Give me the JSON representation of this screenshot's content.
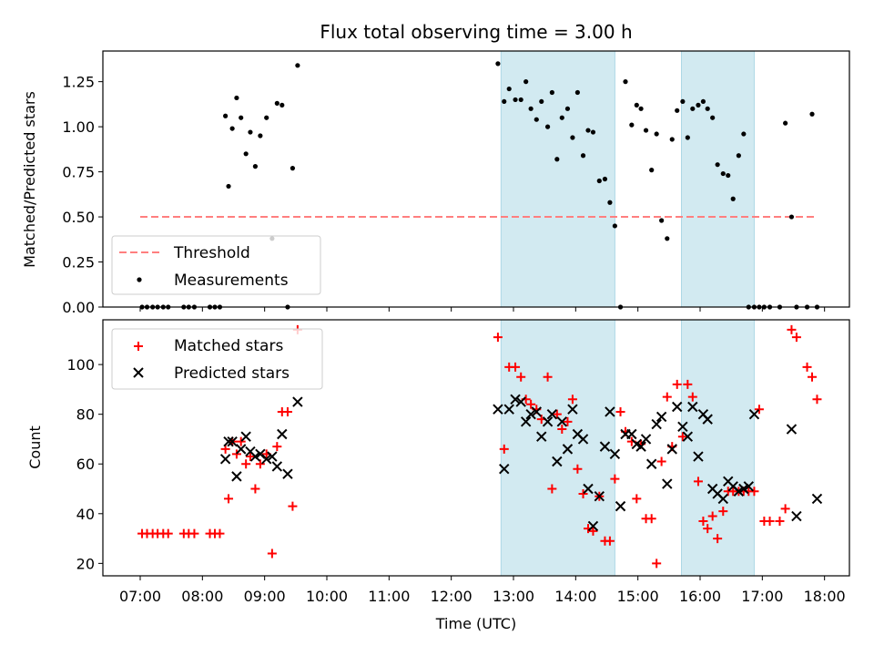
{
  "chart_data": [
    {
      "type": "scatter",
      "title": "Flux total observing time = 3.00 h",
      "ylabel": "Matched/Predicted stars",
      "xlabel": "",
      "xlim": [
        6.4,
        18.4
      ],
      "ylim": [
        0,
        1.42
      ],
      "yticks": [
        0.0,
        0.25,
        0.5,
        0.75,
        1.0,
        1.25
      ],
      "ytick_labels": [
        "0.00",
        "0.25",
        "0.50",
        "0.75",
        "1.00",
        "1.25"
      ],
      "shaded_spans": [
        [
          12.8,
          14.63
        ],
        [
          15.7,
          16.87
        ]
      ],
      "shade_color": "#add8e6",
      "threshold": {
        "name": "Threshold",
        "value": 0.5,
        "x_range": [
          7.0,
          17.87
        ],
        "color": "#ff7f7f"
      },
      "series": [
        {
          "name": "Measurements",
          "marker": "dot",
          "color": "#000000",
          "x": [
            7.03,
            7.11,
            7.2,
            7.28,
            7.37,
            7.45,
            7.7,
            7.78,
            7.87,
            8.12,
            8.2,
            8.28,
            8.37,
            8.42,
            8.48,
            8.55,
            8.62,
            8.7,
            8.77,
            8.85,
            8.93,
            9.03,
            9.12,
            9.2,
            9.28,
            9.37,
            9.45,
            9.53,
            12.75,
            12.85,
            12.93,
            13.03,
            13.12,
            13.2,
            13.28,
            13.37,
            13.45,
            13.55,
            13.62,
            13.7,
            13.78,
            13.87,
            13.95,
            14.03,
            14.12,
            14.2,
            14.28,
            14.38,
            14.47,
            14.55,
            14.63,
            14.72,
            14.8,
            14.9,
            14.98,
            15.05,
            15.13,
            15.22,
            15.3,
            15.38,
            15.47,
            15.55,
            15.63,
            15.72,
            15.8,
            15.88,
            15.97,
            16.05,
            16.12,
            16.2,
            16.28,
            16.37,
            16.45,
            16.53,
            16.62,
            16.7,
            16.78,
            16.87,
            16.95,
            17.03,
            17.12,
            17.28,
            17.37,
            17.47,
            17.55,
            17.72,
            17.8,
            17.88
          ],
          "y": [
            0,
            0,
            0,
            0,
            0,
            0,
            0,
            0,
            0,
            0,
            0,
            0,
            1.06,
            0.67,
            0.99,
            1.16,
            1.05,
            0.85,
            0.97,
            0.78,
            0.95,
            1.05,
            0.38,
            1.13,
            1.12,
            0,
            0.77,
            1.34,
            1.35,
            1.14,
            1.21,
            1.15,
            1.15,
            1.25,
            1.1,
            1.04,
            1.14,
            1.0,
            1.19,
            0.82,
            1.05,
            1.1,
            0.94,
            1.19,
            0.84,
            0.98,
            0.97,
            0.7,
            0.71,
            0.58,
            0.45,
            0.0,
            1.25,
            1.01,
            1.12,
            1.1,
            0.98,
            0.76,
            0.96,
            0.48,
            0.38,
            0.93,
            1.09,
            1.14,
            0.94,
            1.1,
            1.12,
            1.14,
            1.1,
            1.05,
            0.79,
            0.74,
            0.73,
            0.6,
            0.84,
            0.96,
            0,
            0,
            0,
            0,
            0,
            0,
            1.02,
            0.5,
            0,
            0,
            1.07,
            0
          ]
        }
      ],
      "legend": {
        "position": "lower-left"
      }
    },
    {
      "type": "scatter",
      "title": "",
      "xlabel": "Time (UTC)",
      "ylabel": "Count",
      "xlim": [
        6.4,
        18.4
      ],
      "ylim": [
        15,
        118
      ],
      "xticks": [
        7,
        8,
        9,
        10,
        11,
        12,
        13,
        14,
        15,
        16,
        17,
        18
      ],
      "xtick_labels": [
        "07:00",
        "08:00",
        "09:00",
        "10:00",
        "11:00",
        "12:00",
        "13:00",
        "14:00",
        "15:00",
        "16:00",
        "17:00",
        "18:00"
      ],
      "yticks": [
        20,
        40,
        60,
        80,
        100
      ],
      "ytick_labels": [
        "20",
        "40",
        "60",
        "80",
        "100"
      ],
      "shaded_spans": [
        [
          12.8,
          14.63
        ],
        [
          15.7,
          16.87
        ]
      ],
      "shade_color": "#add8e6",
      "series": [
        {
          "name": "Matched stars",
          "marker": "plus",
          "color": "#ff0000",
          "x": [
            7.03,
            7.11,
            7.2,
            7.28,
            7.37,
            7.45,
            7.7,
            7.78,
            7.87,
            8.12,
            8.2,
            8.28,
            8.37,
            8.42,
            8.48,
            8.55,
            8.62,
            8.7,
            8.77,
            8.85,
            8.93,
            9.03,
            9.12,
            9.2,
            9.28,
            9.37,
            9.45,
            9.53,
            12.75,
            12.85,
            12.93,
            13.03,
            13.12,
            13.2,
            13.28,
            13.37,
            13.45,
            13.55,
            13.62,
            13.7,
            13.78,
            13.87,
            13.95,
            14.03,
            14.12,
            14.2,
            14.28,
            14.38,
            14.47,
            14.55,
            14.63,
            14.72,
            14.8,
            14.9,
            14.98,
            15.05,
            15.13,
            15.22,
            15.3,
            15.38,
            15.47,
            15.55,
            15.63,
            15.72,
            15.8,
            15.88,
            15.97,
            16.05,
            16.12,
            16.2,
            16.28,
            16.37,
            16.45,
            16.53,
            16.62,
            16.7,
            16.78,
            16.87,
            16.95,
            17.03,
            17.12,
            17.28,
            17.37,
            17.47,
            17.55,
            17.72,
            17.8,
            17.88
          ],
          "y": [
            32,
            32,
            32,
            32,
            32,
            32,
            32,
            32,
            32,
            32,
            32,
            32,
            66,
            46,
            69,
            64,
            69,
            60,
            63,
            50,
            60,
            64,
            24,
            67,
            81,
            81,
            43,
            114,
            111,
            66,
            99,
            99,
            95,
            86,
            84,
            82,
            78,
            95,
            50,
            80,
            74,
            77,
            86,
            58,
            48,
            34,
            33,
            47,
            29,
            29,
            54,
            81,
            73,
            69,
            46,
            68,
            38,
            38,
            20,
            61,
            87,
            67,
            92,
            71,
            92,
            87,
            53,
            37,
            34,
            39,
            30,
            41,
            49,
            49,
            49,
            49,
            49,
            49,
            82,
            37,
            37,
            37,
            42,
            114,
            111,
            99,
            95,
            86
          ]
        },
        {
          "name": "Predicted stars",
          "marker": "x",
          "color": "#000000",
          "x": [
            8.37,
            8.42,
            8.48,
            8.55,
            8.62,
            8.7,
            8.77,
            8.85,
            8.93,
            9.03,
            9.12,
            9.2,
            9.28,
            9.37,
            9.53,
            12.75,
            12.85,
            12.93,
            13.03,
            13.12,
            13.2,
            13.28,
            13.37,
            13.45,
            13.55,
            13.62,
            13.7,
            13.78,
            13.87,
            13.95,
            14.03,
            14.12,
            14.2,
            14.28,
            14.38,
            14.47,
            14.55,
            14.63,
            14.72,
            14.8,
            14.9,
            14.98,
            15.05,
            15.13,
            15.22,
            15.3,
            15.38,
            15.47,
            15.55,
            15.63,
            15.72,
            15.8,
            15.88,
            15.97,
            16.05,
            16.12,
            16.2,
            16.28,
            16.37,
            16.45,
            16.53,
            16.62,
            16.7,
            16.78,
            16.87,
            17.47,
            17.55,
            17.88
          ],
          "y": [
            62,
            69,
            69,
            55,
            66,
            71,
            65,
            63,
            64,
            62,
            63,
            59,
            72,
            56,
            85,
            82,
            58,
            82,
            86,
            85,
            77,
            80,
            81,
            71,
            77,
            80,
            61,
            77,
            66,
            82,
            72,
            70,
            50,
            35,
            47,
            67,
            81,
            64,
            43,
            72,
            72,
            68,
            67,
            70,
            60,
            76,
            79,
            52,
            66,
            83,
            75,
            71,
            83,
            63,
            80,
            78,
            50,
            48,
            46,
            53,
            51,
            49,
            50,
            51,
            80,
            74,
            39,
            46
          ]
        }
      ],
      "legend": {
        "position": "upper-left"
      }
    }
  ]
}
